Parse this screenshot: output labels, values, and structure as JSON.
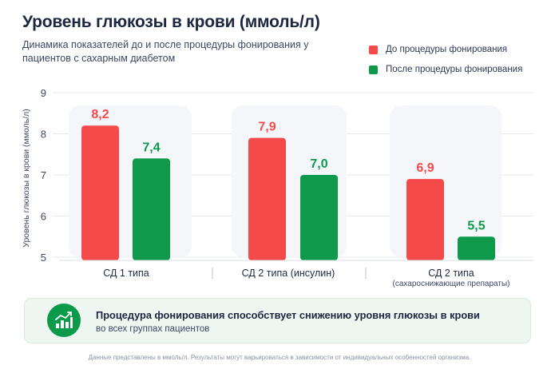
{
  "header": {
    "title": "Уровень глюкозы в крови (ммоль/л)",
    "subtitle": "Динамика показателей до и после процедуры фонирования у пациентов с сахарным диабетом"
  },
  "legend": {
    "items": [
      {
        "label": "До процедуры фонирования",
        "color": "#f44a4a"
      },
      {
        "label": "После процедуры фонирования",
        "color": "#0e9a4a"
      }
    ]
  },
  "chart_data": {
    "type": "bar",
    "ylabel": "Уровень глюкозы в крови (ммоль/л)",
    "ylim": [
      5,
      9
    ],
    "yticks": [
      "5",
      "6",
      "7",
      "8",
      "9"
    ],
    "categories": [
      "СД 1 типа",
      "СД 2 типа (инсулин)",
      "СД 2 типа"
    ],
    "category_sublabels": [
      "",
      "",
      "(сахароснижающие препараты)"
    ],
    "series": [
      {
        "name": "До процедуры фонирования",
        "color": "#f44a4a",
        "values": [
          8.2,
          7.9,
          6.9
        ],
        "labels": [
          "8,2",
          "7,9",
          "6,9"
        ]
      },
      {
        "name": "После процедуры фонирования",
        "color": "#0e9a4a",
        "values": [
          7.4,
          7.0,
          5.5
        ],
        "labels": [
          "7,4",
          "7,0",
          "5,5"
        ]
      }
    ],
    "grid": true,
    "legend_position": "top-right"
  },
  "info": {
    "title": "Процедура фонирования способствует снижению уровня глюкозы в крови",
    "subtitle": "во всех группах пациентов",
    "icon": "growth-chart-icon"
  },
  "footnote": "Данные представлены в ммоль/л. Результаты могут варьироваться в зависимости от индивидуальных особенностей организма."
}
